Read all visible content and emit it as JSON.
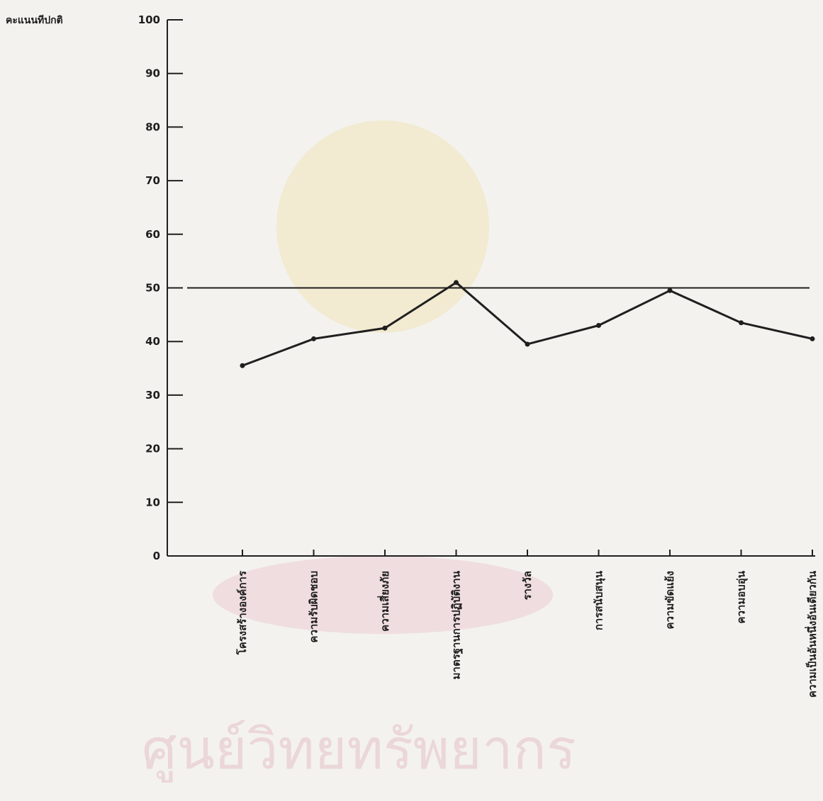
{
  "chart_data": {
    "type": "line",
    "ylabel": "คะแนนทีปกติ",
    "ylim": [
      0,
      100
    ],
    "yticks": [
      0,
      10,
      20,
      30,
      40,
      50,
      60,
      70,
      80,
      90,
      100
    ],
    "categories": [
      "โครงสร้างองค์การ",
      "ความรับผิดชอบ",
      "ความเสี่ยงภัย",
      "มาตรฐานการปฏิบัติงาน",
      "รางวัล",
      "การสนับสนุน",
      "ความขัดแย้ง",
      "ความอบอุ่น",
      "ความเป็นอันหนึ่งอันเดียวกัน"
    ],
    "series": [
      {
        "values": [
          35.5,
          40.5,
          42.5,
          51,
          39.5,
          43,
          49.5,
          43.5,
          40.5
        ]
      }
    ],
    "reference_line": 50,
    "grid": false,
    "legend": "none",
    "colors": {
      "line": "#1f1f1f",
      "background": "#f3f2ee"
    }
  },
  "watermark": {
    "text": "ศูนย์วิทยทรัพยากร"
  }
}
